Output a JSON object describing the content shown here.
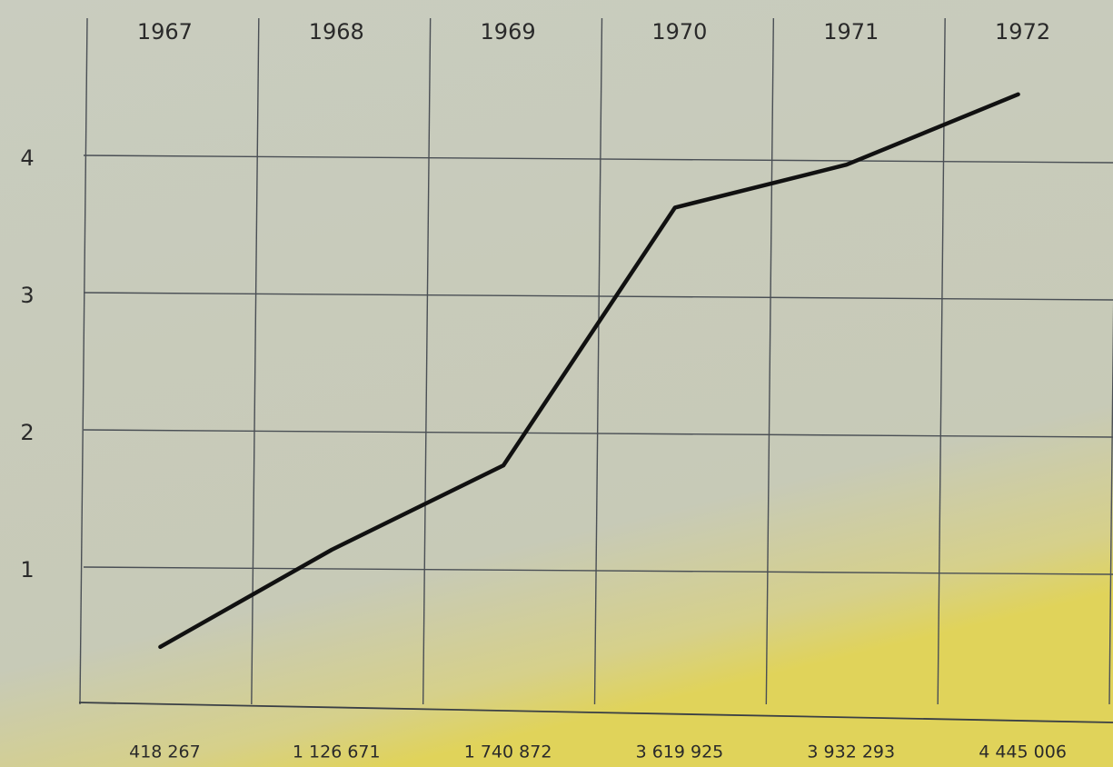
{
  "chart_data": {
    "type": "line",
    "categories": [
      "1967",
      "1968",
      "1969",
      "1970",
      "1971",
      "1972"
    ],
    "values": [
      0.418267,
      1.126671,
      1.740872,
      3.619925,
      3.932293,
      4.445006
    ],
    "value_labels": [
      "418 267",
      "1 126 671",
      "1 740 872",
      "3 619 925",
      "3 932 293",
      "4 445 006"
    ],
    "color": "#111111",
    "ylim": [
      0,
      5
    ],
    "yticks": [
      1,
      2,
      3,
      4
    ],
    "grid": true
  }
}
